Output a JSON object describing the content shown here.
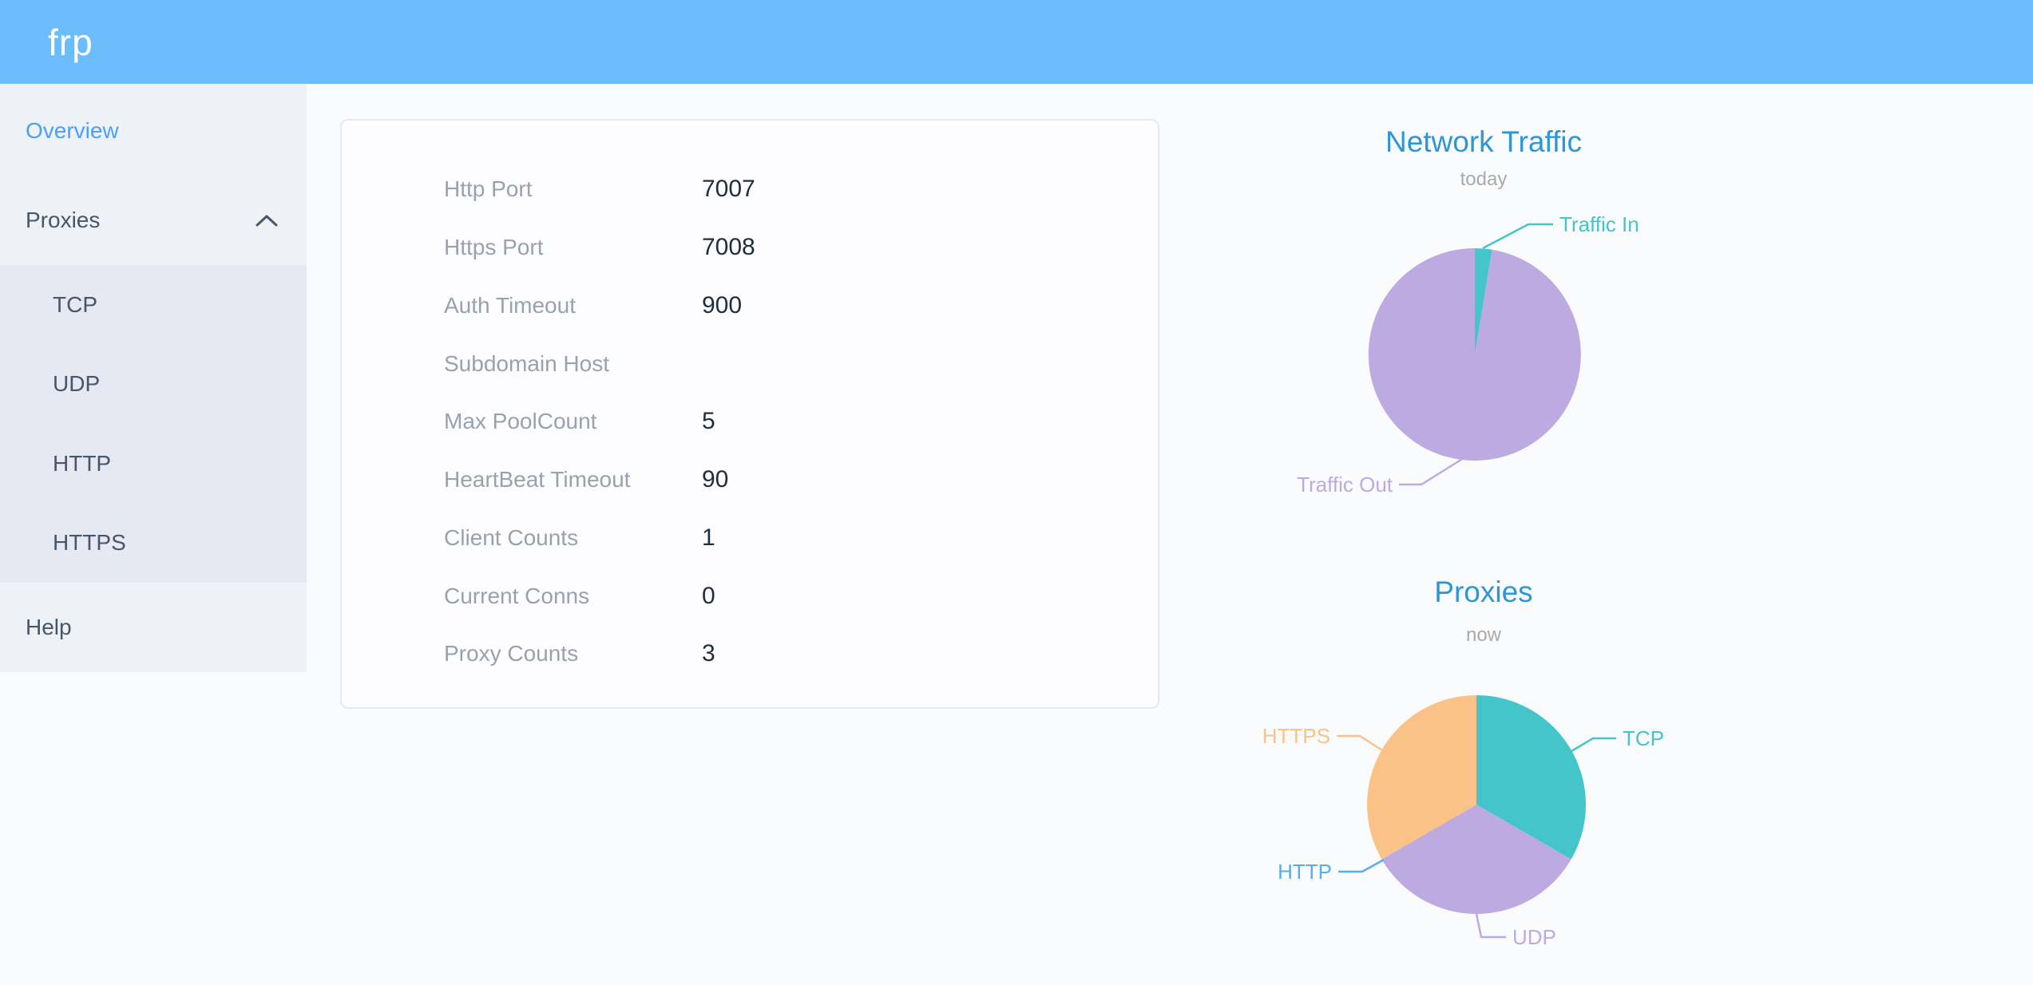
{
  "header": {
    "logo_text": "frp"
  },
  "sidebar": {
    "items": [
      {
        "label": "Overview",
        "active": true
      },
      {
        "label": "Proxies",
        "expanded": true
      },
      {
        "label": "Help"
      }
    ],
    "proxies_children": [
      {
        "label": "TCP"
      },
      {
        "label": "UDP"
      },
      {
        "label": "HTTP"
      },
      {
        "label": "HTTPS"
      }
    ]
  },
  "server_info": {
    "rows": [
      {
        "label": "Http Port",
        "value": "7007"
      },
      {
        "label": "Https Port",
        "value": "7008"
      },
      {
        "label": "Auth Timeout",
        "value": "900"
      },
      {
        "label": "Subdomain Host",
        "value": ""
      },
      {
        "label": "Max PoolCount",
        "value": "5"
      },
      {
        "label": "HeartBeat Timeout",
        "value": "90"
      },
      {
        "label": "Client Counts",
        "value": "1"
      },
      {
        "label": "Current Conns",
        "value": "0"
      },
      {
        "label": "Proxy Counts",
        "value": "3"
      }
    ]
  },
  "chart_data": [
    {
      "type": "pie",
      "title": "Network Traffic",
      "subtitle": "today",
      "series": [
        {
          "name": "Traffic In",
          "value": 2.6
        },
        {
          "name": "Traffic Out",
          "value": 97.4
        }
      ],
      "values_unit": "percent (estimated from slice angles)",
      "legend_position": "outside labels with leader lines"
    },
    {
      "type": "pie",
      "title": "Proxies",
      "subtitle": "now",
      "series": [
        {
          "name": "TCP",
          "value": 1
        },
        {
          "name": "UDP",
          "value": 1
        },
        {
          "name": "HTTP",
          "value": 0
        },
        {
          "name": "HTTPS",
          "value": 1
        }
      ],
      "values_unit": "proxy count",
      "legend_position": "outside labels with leader lines"
    }
  ],
  "colors": {
    "header_bg": "#6abcfb",
    "sidebar_bg": "#eef1f6",
    "submenu_bg": "#e6e9f1",
    "menu_text": "#46566b",
    "menu_active": "#4aa0f5",
    "card_label": "#99a1af",
    "card_value": "#1f2d3d",
    "chart_title": "#2c96d8",
    "chart_subtitle": "#aaaaaa",
    "series": {
      "Traffic In": "#43c5c9",
      "Traffic Out": "#bcaae1",
      "TCP": "#43c5c9",
      "UDP": "#bcaae1",
      "HTTP": "#57acf0",
      "HTTPS": "#fac287"
    }
  }
}
